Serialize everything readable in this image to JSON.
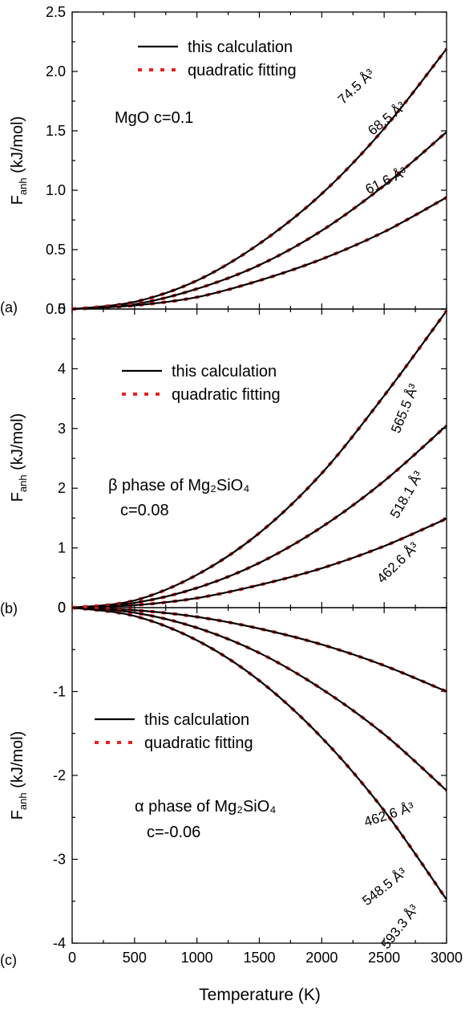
{
  "chart_data": [
    {
      "type": "line",
      "panel": "(a)",
      "annotation_lines": [
        "MgO  c=0.1"
      ],
      "ylabel_main": "F",
      "ylabel_sub": "anh",
      "ylabel_unit": "(kJ/mol)",
      "xlim": [
        0,
        3000
      ],
      "ylim": [
        0,
        2.5
      ],
      "xticks": [
        0,
        500,
        1000,
        1500,
        2000,
        2500,
        3000
      ],
      "yticks": [
        "0.0",
        "0.5",
        "1.0",
        "1.5",
        "2.0",
        "2.5"
      ],
      "ytick_values": [
        0,
        0.5,
        1.0,
        1.5,
        2.0,
        2.5
      ],
      "legend": {
        "position": "top-left",
        "calc_label": "this calculation",
        "fit_label": "quadratic fitting",
        "calc_color": "#000000",
        "fit_color": "#e8231f"
      },
      "series": [
        {
          "name": "74.5 Å³",
          "x": [
            0,
            500,
            1000,
            1500,
            2000,
            2500,
            3000
          ],
          "y": [
            0,
            0.06,
            0.24,
            0.55,
            0.97,
            1.52,
            2.19
          ]
        },
        {
          "name": "68.5 Å³",
          "x": [
            0,
            500,
            1000,
            1500,
            2000,
            2500,
            3000
          ],
          "y": [
            0,
            0.04,
            0.17,
            0.37,
            0.66,
            1.04,
            1.49
          ]
        },
        {
          "name": "61.6 Å³",
          "x": [
            0,
            500,
            1000,
            1500,
            2000,
            2500,
            3000
          ],
          "y": [
            0,
            0.03,
            0.1,
            0.24,
            0.42,
            0.65,
            0.94
          ]
        }
      ]
    },
    {
      "type": "line",
      "panel": "(b)",
      "annotation_lines": [
        "β phase of Mg₂SiO₄",
        "c=0.08"
      ],
      "ylabel_main": "F",
      "ylabel_sub": "anh",
      "ylabel_unit": "(kJ/mol)",
      "xlim": [
        0,
        3000
      ],
      "ylim": [
        0,
        5
      ],
      "xticks": [
        0,
        500,
        1000,
        1500,
        2000,
        2500,
        3000
      ],
      "yticks": [
        "0",
        "1",
        "2",
        "3",
        "4",
        "5"
      ],
      "ytick_values": [
        0,
        1,
        2,
        3,
        4,
        5
      ],
      "legend": {
        "position": "top-left",
        "calc_label": "this calculation",
        "fit_label": "quadratic fitting",
        "calc_color": "#000000",
        "fit_color": "#e8231f"
      },
      "series": [
        {
          "name": "565.5 Å³",
          "x": [
            0,
            500,
            1000,
            1500,
            2000,
            2500,
            3000
          ],
          "y": [
            0,
            0.12,
            0.55,
            1.25,
            2.25,
            3.55,
            4.97
          ]
        },
        {
          "name": "518.1 Å³",
          "x": [
            0,
            500,
            1000,
            1500,
            2000,
            2500,
            3000
          ],
          "y": [
            0,
            0.08,
            0.33,
            0.75,
            1.35,
            2.12,
            3.05
          ]
        },
        {
          "name": "462.6 Å³",
          "x": [
            0,
            500,
            1000,
            1500,
            2000,
            2500,
            3000
          ],
          "y": [
            0,
            0.04,
            0.16,
            0.38,
            0.66,
            1.03,
            1.49
          ]
        }
      ]
    },
    {
      "type": "line",
      "panel": "(c)",
      "annotation_lines": [
        "α phase of Mg₂SiO₄",
        "c=-0.06"
      ],
      "ylabel_main": "F",
      "ylabel_sub": "anh",
      "ylabel_unit": "(kJ/mol)",
      "xlabel": "Temperature  (K)",
      "xlim": [
        0,
        3000
      ],
      "ylim": [
        -4,
        0
      ],
      "xticks": [
        0,
        500,
        1000,
        1500,
        2000,
        2500,
        3000
      ],
      "yticks": [
        "-4",
        "-3",
        "-2",
        "-1",
        "0"
      ],
      "ytick_values": [
        -4,
        -3,
        -2,
        -1,
        0
      ],
      "legend": {
        "position": "center-left",
        "calc_label": "this calculation",
        "fit_label": "quadratic fitting",
        "calc_color": "#000000",
        "fit_color": "#e8231f"
      },
      "series": [
        {
          "name": "462.6 Å³",
          "x": [
            0,
            500,
            1000,
            1500,
            2000,
            2500,
            3000
          ],
          "y": [
            0,
            -0.03,
            -0.11,
            -0.25,
            -0.44,
            -0.69,
            -1.0
          ]
        },
        {
          "name": "548.5 Å³",
          "x": [
            0,
            500,
            1000,
            1500,
            2000,
            2500,
            3000
          ],
          "y": [
            0,
            -0.06,
            -0.24,
            -0.54,
            -0.97,
            -1.51,
            -2.18
          ]
        },
        {
          "name": "593.3 Å³",
          "x": [
            0,
            500,
            1000,
            1500,
            2000,
            2500,
            3000
          ],
          "y": [
            0,
            -0.1,
            -0.39,
            -0.87,
            -1.55,
            -2.42,
            -3.48
          ]
        }
      ]
    }
  ]
}
